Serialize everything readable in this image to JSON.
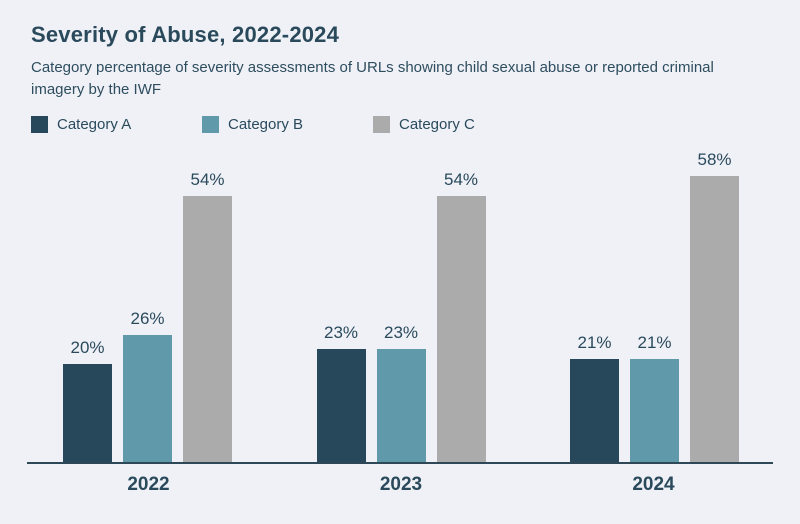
{
  "theme": {
    "background": "#eff1f7",
    "text_color": "#2a4a5c",
    "axis_color": "#2f4858"
  },
  "chart_data": {
    "type": "bar",
    "title": "Severity of Abuse, 2022-2024",
    "subtitle": "Category percentage of severity assessments of URLs showing child sexual abuse or reported criminal imagery by the IWF",
    "categories": [
      "2022",
      "2023",
      "2024"
    ],
    "series": [
      {
        "name": "Category A",
        "color": "#26485a",
        "values": [
          20,
          23,
          21
        ]
      },
      {
        "name": "Category B",
        "color": "#5f99aa",
        "values": [
          26,
          23,
          21
        ]
      },
      {
        "name": "Category C",
        "color": "#ababab",
        "values": [
          54,
          54,
          58
        ]
      }
    ],
    "value_suffix": "%",
    "xlabel": "",
    "ylabel": "",
    "ylim": [
      0,
      60
    ],
    "grid": false,
    "legend_position": "top-left",
    "bar_labels": true
  }
}
